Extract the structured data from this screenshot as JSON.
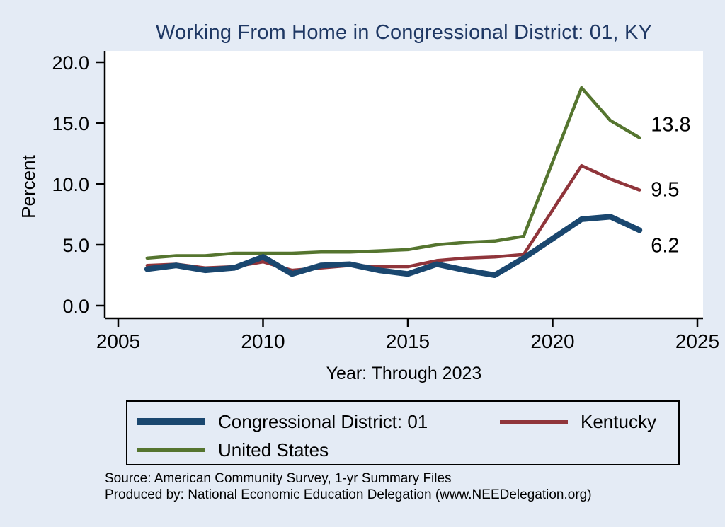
{
  "page": {
    "title": "Working From Home in Congressional District: 01, KY",
    "ylabel": "Percent",
    "xlabel": "Year: Through 2023",
    "source_line1": "Source: American Community Survey, 1-yr Summary Files",
    "source_line2": "Produced by: National Economic Education Delegation (www.NEEDelegation.org)"
  },
  "colors": {
    "background": "#e4ebf5",
    "plot_background": "#ffffff",
    "title": "#1f3864",
    "axis": "#000000",
    "navy": "#1a476f",
    "maroon": "#90353b",
    "green": "#55752f"
  },
  "chart_data": {
    "type": "line",
    "title": "Working From Home in Congressional District: 01, KY",
    "xlabel": "Year: Through 2023",
    "ylabel": "Percent",
    "xlim": [
      2005,
      2025
    ],
    "ylim": [
      0,
      20
    ],
    "xticks": [
      2005,
      2010,
      2015,
      2020,
      2025
    ],
    "yticks": [
      0,
      5,
      10,
      15,
      20
    ],
    "ytick_labels": [
      "0.0",
      "5.0",
      "10.0",
      "15.0",
      "20.0"
    ],
    "grid": false,
    "legend_position": "bottom",
    "x": [
      2006,
      2007,
      2008,
      2009,
      2010,
      2011,
      2012,
      2013,
      2014,
      2015,
      2016,
      2017,
      2018,
      2019,
      2021,
      2022,
      2023
    ],
    "series": [
      {
        "name": "Congressional District: 01",
        "color_key": "navy",
        "end_label": "6.2",
        "values": [
          3.0,
          3.3,
          2.9,
          3.1,
          4.0,
          2.6,
          3.3,
          3.4,
          2.9,
          2.6,
          3.4,
          2.9,
          2.5,
          3.9,
          7.1,
          7.3,
          6.2
        ]
      },
      {
        "name": "Kentucky",
        "color_key": "maroon",
        "end_label": "9.5",
        "values": [
          3.3,
          3.4,
          3.1,
          3.2,
          3.6,
          2.9,
          3.1,
          3.3,
          3.2,
          3.2,
          3.7,
          3.9,
          4.0,
          4.2,
          11.5,
          10.4,
          9.5
        ]
      },
      {
        "name": "United States",
        "color_key": "green",
        "end_label": "13.8",
        "values": [
          3.9,
          4.1,
          4.1,
          4.3,
          4.3,
          4.3,
          4.4,
          4.4,
          4.5,
          4.6,
          5.0,
          5.2,
          5.3,
          5.7,
          17.9,
          15.2,
          13.8
        ]
      }
    ]
  }
}
